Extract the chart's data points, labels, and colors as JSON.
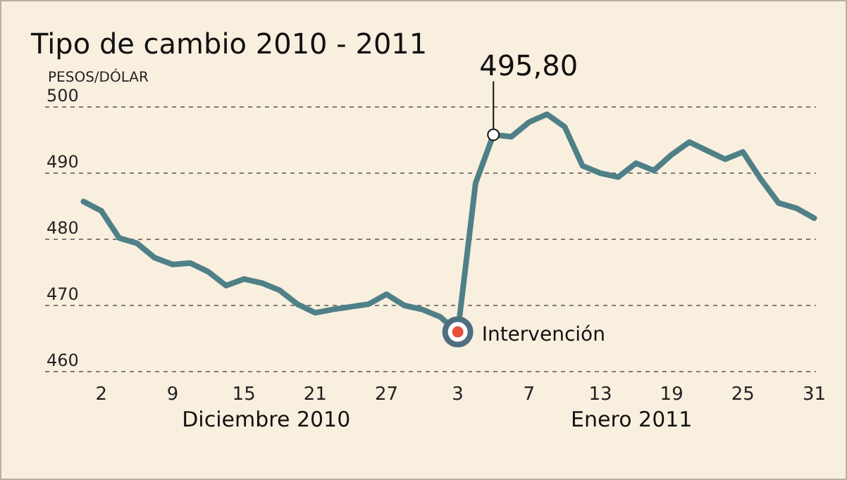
{
  "chart_data": {
    "type": "line",
    "title": "Tipo de cambio 2010 - 2011",
    "ylabel": "PESOS/DÓLAR",
    "categories": [
      null,
      "2",
      null,
      null,
      null,
      "9",
      null,
      null,
      null,
      "15",
      null,
      null,
      null,
      "21",
      null,
      null,
      null,
      "27",
      null,
      null,
      null,
      "3",
      null,
      null,
      null,
      "7",
      null,
      null,
      null,
      "13",
      null,
      null,
      null,
      "19",
      null,
      null,
      null,
      "25",
      null,
      null,
      null,
      "31"
    ],
    "series": [
      {
        "color": "#4f8088",
        "value_labels": [
          null,
          null,
          null,
          null,
          null,
          null,
          null,
          null,
          null,
          null,
          null,
          null,
          null,
          null,
          null,
          null,
          null,
          null,
          null,
          null,
          null,
          null,
          null,
          "495,80",
          null,
          null,
          null,
          null,
          null,
          null,
          null,
          null,
          null,
          null,
          null,
          null,
          null,
          null,
          null,
          null,
          null,
          null
        ],
        "values": [
          485.7,
          484.3,
          480.2,
          479.4,
          477.2,
          476.2,
          476.4,
          475.1,
          473.0,
          474.0,
          473.4,
          472.3,
          470.2,
          468.9,
          469.4,
          469.8,
          470.2,
          471.7,
          470.0,
          469.4,
          468.3,
          466.0,
          488.5,
          495.8,
          495.5,
          497.7,
          498.9,
          497.0,
          491.1,
          490.0,
          489.4,
          491.5,
          490.4,
          492.8,
          494.7,
          493.4,
          492.1,
          493.2,
          489.1,
          485.5,
          484.7,
          483.2
        ]
      }
    ],
    "ylim": [
      460,
      500
    ],
    "yticks": [
      460,
      470,
      480,
      490,
      500
    ],
    "grid": "y",
    "marker": "none",
    "line_style": "solid",
    "annotations": [
      {
        "text": "Intervención",
        "x": "3",
        "y": 466.0
      },
      "Diciembre 2010",
      "Enero 2011"
    ]
  }
}
